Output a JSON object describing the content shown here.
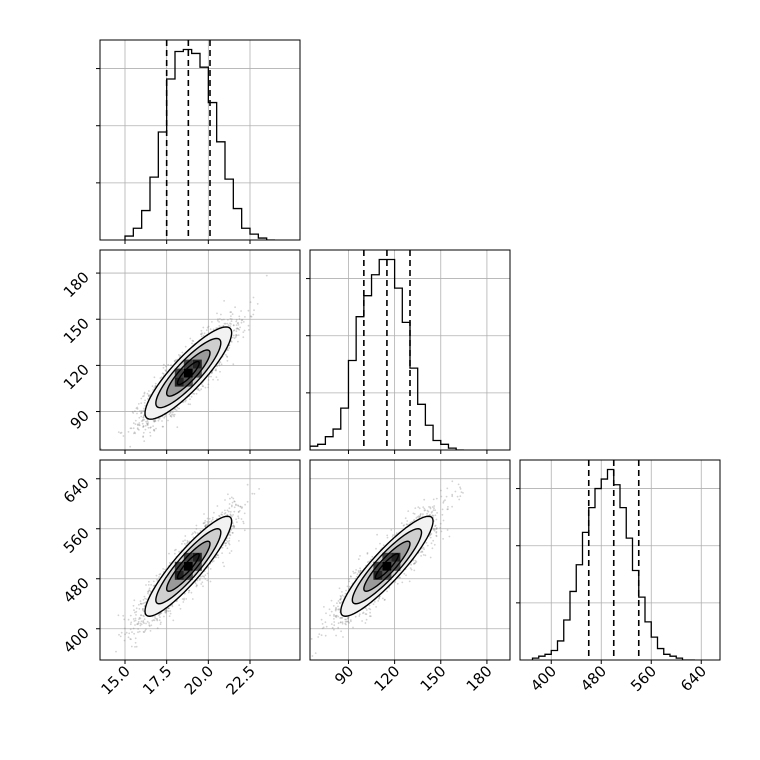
{
  "chart_data": {
    "type": "corner",
    "parameters": [
      {
        "range": [
          13.5,
          25.5
        ],
        "ticks": [
          15.0,
          17.5,
          20.0,
          22.5
        ],
        "tick_labels": [
          "15.0",
          "17.5",
          "20.0",
          "22.5"
        ],
        "quantiles": [
          17.5,
          18.8,
          20.1
        ],
        "hist_edges": [
          15.0,
          15.5,
          16.0,
          16.5,
          17.0,
          17.5,
          18.0,
          18.5,
          19.0,
          19.5,
          20.0,
          20.5,
          21.0,
          21.5,
          22.0,
          22.5,
          23.0,
          23.5,
          24.0
        ],
        "hist_counts": [
          2,
          6,
          15,
          32,
          55,
          82,
          96,
          97,
          95,
          88,
          70,
          50,
          31,
          16,
          6,
          3,
          1,
          0
        ]
      },
      {
        "range": [
          65,
          195
        ],
        "ticks": [
          90,
          120,
          150,
          180
        ],
        "tick_labels": [
          "90",
          "120",
          "150",
          "180"
        ],
        "quantiles": [
          100,
          115,
          130
        ],
        "hist_edges": [
          65,
          70,
          75,
          80,
          85,
          90,
          95,
          100,
          105,
          110,
          115,
          120,
          125,
          130,
          135,
          140,
          145,
          150,
          155,
          160,
          165
        ],
        "hist_counts": [
          2,
          3,
          7,
          11,
          22,
          47,
          70,
          81,
          92,
          100,
          100,
          85,
          67,
          43,
          24,
          13,
          5,
          3,
          1,
          0
        ]
      },
      {
        "range": [
          350,
          670
        ],
        "ticks": [
          400,
          480,
          560,
          640
        ],
        "tick_labels": [
          "400",
          "480",
          "560",
          "640"
        ],
        "quantiles": [
          460,
          500,
          540
        ],
        "hist_edges": [
          370,
          380,
          390,
          400,
          410,
          420,
          430,
          440,
          450,
          460,
          470,
          480,
          490,
          500,
          510,
          520,
          530,
          540,
          550,
          560,
          570,
          580,
          590,
          600,
          610,
          620,
          630
        ],
        "hist_counts": [
          1,
          2,
          3,
          5,
          10,
          21,
          36,
          50,
          67,
          80,
          90,
          95,
          100,
          92,
          80,
          64,
          47,
          33,
          20,
          12,
          6,
          3,
          2,
          1,
          0,
          0
        ]
      }
    ],
    "pairs": [
      {
        "x": 0,
        "y": 1,
        "density_mean": [
          18.8,
          115
        ],
        "density_sd": [
          1.3,
          15
        ],
        "correlation": 0.87,
        "contour_levels": [
          0.5,
          1.0,
          1.5,
          2.0
        ]
      },
      {
        "x": 0,
        "y": 2,
        "density_mean": [
          18.8,
          500
        ],
        "density_sd": [
          1.3,
          40
        ],
        "correlation": 0.9,
        "contour_levels": [
          0.5,
          1.0,
          1.5,
          2.0
        ]
      },
      {
        "x": 1,
        "y": 2,
        "density_mean": [
          115,
          500
        ],
        "density_sd": [
          15,
          40
        ],
        "correlation": 0.9,
        "contour_levels": [
          0.5,
          1.0,
          1.5,
          2.0
        ]
      }
    ],
    "grid": true,
    "histogram_style": "step",
    "quantile_line_style": "dashed",
    "colors": {
      "line": "#000000",
      "points": "#808080",
      "grid": "#b0b0b0",
      "frame": "#000000"
    }
  }
}
